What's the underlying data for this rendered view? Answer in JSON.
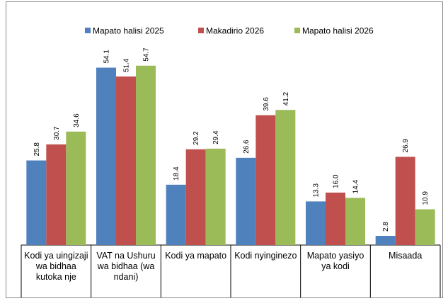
{
  "chart_data": {
    "type": "bar",
    "categories": [
      "Kodi ya uingizaji wa bidhaa kutoka nje",
      "VAT na Ushuru wa bidhaa (wa ndani)",
      "Kodi ya mapato",
      "Kodi nyinginezo",
      "Mapato yasiyo ya kodi",
      "Misaada"
    ],
    "series": [
      {
        "name": "Mapato halisi 2025",
        "color": "#4f81bd",
        "values": [
          25.8,
          54.1,
          18.4,
          26.6,
          13.3,
          2.8
        ],
        "value_labels": [
          "25.8",
          "54.1",
          "18.4",
          "26.6",
          "13.3",
          "2.8"
        ]
      },
      {
        "name": "Makadirio 2026",
        "color": "#c0504d",
        "values": [
          30.7,
          51.4,
          29.2,
          39.6,
          16.0,
          26.9
        ],
        "value_labels": [
          "30.7",
          "51.4",
          "29.2",
          "39.6",
          "16.0",
          "26.9"
        ]
      },
      {
        "name": "Mapato halisi 2026",
        "color": "#9bbb59",
        "values": [
          34.6,
          54.7,
          29.4,
          41.2,
          14.4,
          10.9
        ],
        "value_labels": [
          "34.6",
          "54.7",
          "29.4",
          "41.2",
          "14.4",
          "10.9"
        ]
      }
    ],
    "legend": "top"
  }
}
